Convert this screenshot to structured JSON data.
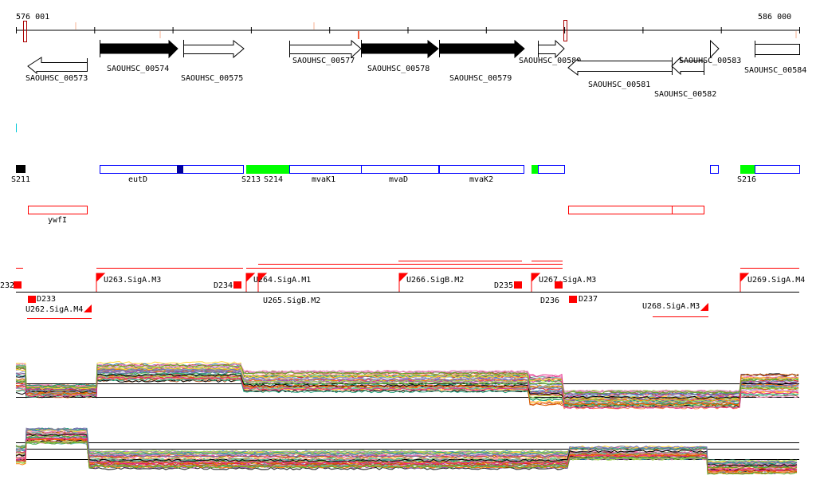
{
  "ruler": {
    "start_label": "576 001",
    "end_label": "586 000"
  },
  "genes": [
    {
      "id": "SAOUHSC_00573",
      "strand": "-",
      "filled": false
    },
    {
      "id": "SAOUHSC_00574",
      "strand": "+",
      "filled": true
    },
    {
      "id": "SAOUHSC_00575",
      "strand": "+",
      "filled": false
    },
    {
      "id": "SAOUHSC_00577",
      "strand": "+",
      "filled": false
    },
    {
      "id": "SAOUHSC_00578",
      "strand": "+",
      "filled": true
    },
    {
      "id": "SAOUHSC_00579",
      "strand": "+",
      "filled": true
    },
    {
      "id": "SAOUHSC_00580",
      "strand": "+",
      "filled": false
    },
    {
      "id": "SAOUHSC_00581",
      "strand": "-",
      "filled": false
    },
    {
      "id": "SAOUHSC_00582",
      "strand": "-",
      "filled": false
    },
    {
      "id": "SAOUHSC_00583",
      "strand": "+",
      "filled": false
    },
    {
      "id": "SAOUHSC_00584",
      "strand": "none",
      "filled": false
    }
  ],
  "features": [
    "S211",
    "eutD",
    "S213",
    "S214",
    "mvaK1",
    "mvaD",
    "mvaK2",
    "S216"
  ],
  "reverse_features": [
    "ywfI"
  ],
  "promoters": [
    "232",
    "D233",
    "U262.SigA.M4",
    "U263.SigA.M3",
    "D234",
    "U264.SigA.M1",
    "U265.SigB.M2",
    "U266.SigB.M2",
    "D235",
    "U267.SigA.M3",
    "D236",
    "D237",
    "U268.SigA.M3",
    "U269.SigA.M4"
  ],
  "colors": {
    "feature_outline": "#0000ff",
    "feature_green": "#00ff00",
    "feature_dark": "#000099",
    "promoter": "#ff0000",
    "marker": "#aa0000",
    "cyan": "#00c8d8"
  },
  "series_colors": [
    "#e41a1c",
    "#377eb8",
    "#4daf4a",
    "#984ea3",
    "#ff7f00",
    "#a65628",
    "#f781bf",
    "#999999",
    "#66c2a5",
    "#fc8d62",
    "#8da0cb",
    "#e78ac3",
    "#a6d854",
    "#ffd92f",
    "#000000",
    "#1b9e77",
    "#d95f02",
    "#7570b3",
    "#e7298a",
    "#66a61e"
  ]
}
